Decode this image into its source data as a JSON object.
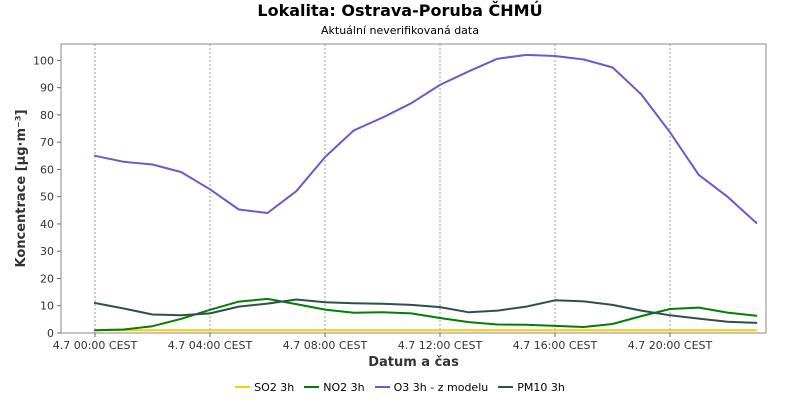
{
  "chart_data": {
    "type": "line",
    "title": "Lokalita: Ostrava-Poruba ČHMÚ",
    "subtitle": "Aktuální neverifikovaná data",
    "xlabel": "Datum a čas",
    "ylabel": "Koncentrace [µg·m⁻³]",
    "ylim": [
      0,
      106
    ],
    "yticks": [
      0,
      10,
      20,
      30,
      40,
      50,
      60,
      70,
      80,
      90,
      100
    ],
    "xticks": [
      {
        "h": 0,
        "label": "4.7 00:00 CEST"
      },
      {
        "h": 4,
        "label": "4.7 04:00 CEST"
      },
      {
        "h": 8,
        "label": "4.7 08:00 CEST"
      },
      {
        "h": 12,
        "label": "4.7 12:00 CEST"
      },
      {
        "h": 16,
        "label": "4.7 16:00 CEST"
      },
      {
        "h": 20,
        "label": "4.7 20:00 CEST"
      }
    ],
    "grid": true,
    "legend_position": "bottom",
    "x": [
      0,
      1,
      2,
      3,
      4,
      5,
      6,
      7,
      8,
      9,
      10,
      11,
      12,
      13,
      14,
      15,
      16,
      17,
      18,
      19,
      20,
      21,
      22,
      23
    ],
    "series": [
      {
        "name": "SO2 3h",
        "color": "#ffcc00",
        "values": [
          1,
          1,
          1,
          1,
          1,
          1,
          1,
          1,
          1,
          1,
          1,
          1,
          1,
          1,
          1,
          1,
          1,
          1,
          1,
          1,
          1,
          1,
          1,
          1
        ]
      },
      {
        "name": "NO2 3h",
        "color": "#008000",
        "values": [
          1,
          1.3,
          2.5,
          5.2,
          8.5,
          11.5,
          12.5,
          10.6,
          8.6,
          7.4,
          7.6,
          7.2,
          5.5,
          4.0,
          3.1,
          3.0,
          2.6,
          2.2,
          3.3,
          6.2,
          8.8,
          9.3,
          7.5,
          6.3
        ]
      },
      {
        "name": "O3 3h - z modelu",
        "color": "#6a5acd",
        "values": [
          65,
          62.8,
          61.8,
          59,
          52.7,
          45.3,
          44,
          52,
          64.5,
          74.3,
          79,
          84.3,
          91,
          96,
          100.6,
          102,
          101.6,
          100.3,
          97.4,
          87.5,
          73.6,
          58,
          50,
          40.4
        ]
      },
      {
        "name": "PM10 3h",
        "color": "#2f4f4f",
        "values": [
          11,
          9,
          6.8,
          6.5,
          7.2,
          9.7,
          10.8,
          12.3,
          11.3,
          10.9,
          10.7,
          10.3,
          9.5,
          7.6,
          8.2,
          9.7,
          12,
          11.6,
          10.3,
          8.2,
          6.5,
          5.3,
          4.1,
          3.7
        ]
      }
    ]
  }
}
